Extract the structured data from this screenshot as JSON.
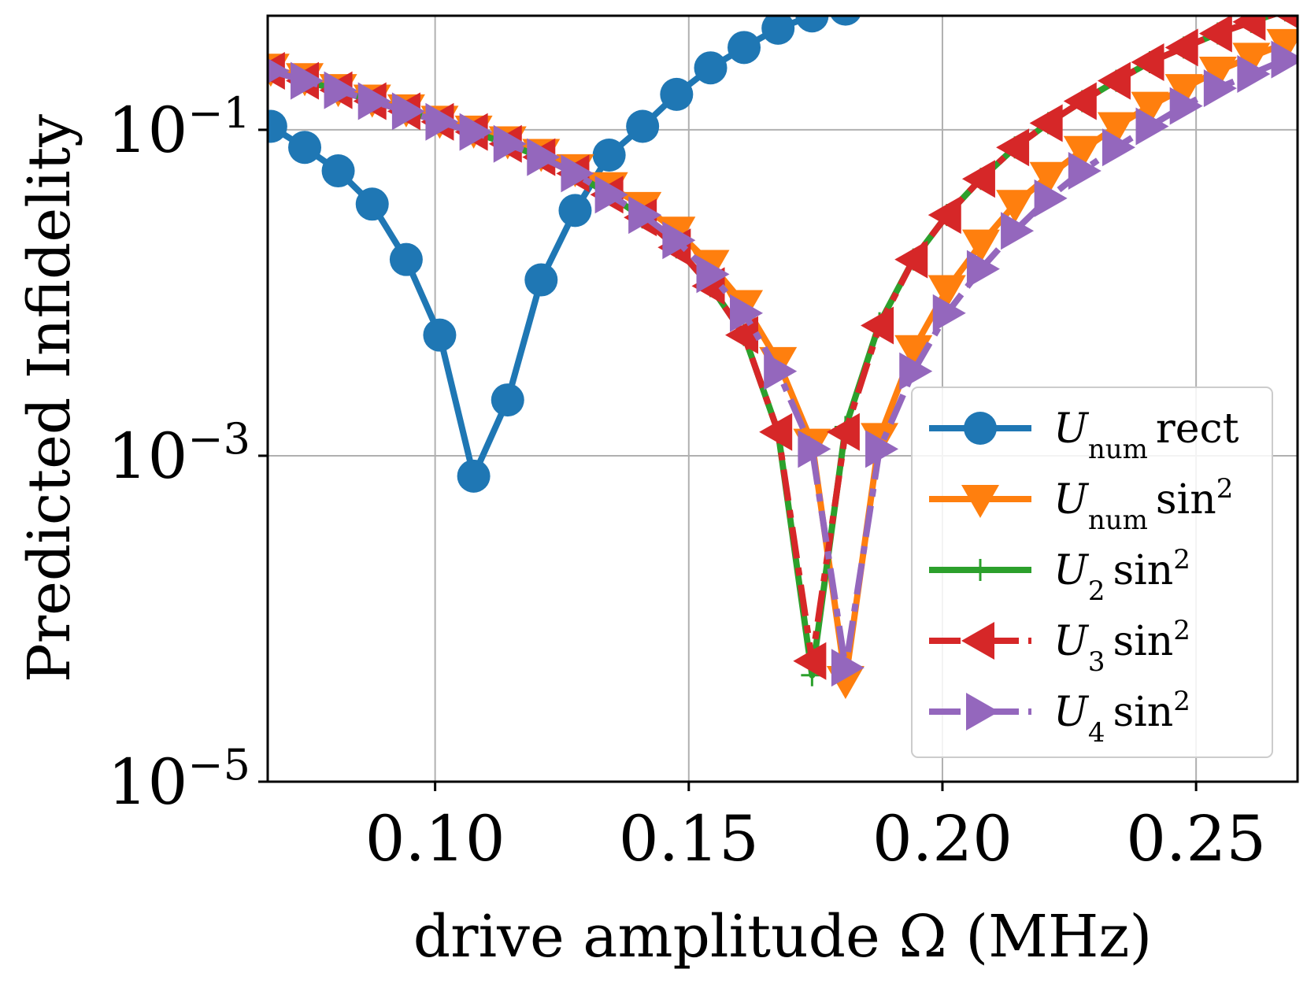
{
  "chart_data": {
    "type": "line",
    "title": "",
    "xlabel": "drive amplitude Ω (MHz)",
    "ylabel": "Predicted Infidelity",
    "xlim": [
      0.067,
      0.27
    ],
    "ylim_log10": [
      -5,
      -0.3
    ],
    "yscale": "log",
    "grid": true,
    "legend_position": "lower-right",
    "xticks": [
      0.1,
      0.15,
      0.2,
      0.25
    ],
    "xtick_labels": [
      "0.10",
      "0.15",
      "0.20",
      "0.25"
    ],
    "yticks": [
      0.1,
      0.001,
      1e-05
    ],
    "ytick_labels": [
      {
        "base": "10",
        "exp": "−1"
      },
      {
        "base": "10",
        "exp": "−3"
      },
      {
        "base": "10",
        "exp": "−5"
      }
    ],
    "series": [
      {
        "name": "U_num rect",
        "legend": {
          "main": "U",
          "sub": "num",
          "rest": "rect",
          "sup": ""
        },
        "color": "#1f77b4",
        "marker": "circle",
        "dash": "solid",
        "x": [
          0.0676,
          0.0743,
          0.0809,
          0.0876,
          0.0943,
          0.1009,
          0.1076,
          0.1143,
          0.1209,
          0.1276,
          0.1343,
          0.1409,
          0.1476,
          0.1543,
          0.1609,
          0.1676,
          0.1743,
          0.1809
        ],
        "y": [
          0.105,
          0.078,
          0.056,
          0.035,
          0.016,
          0.0055,
          0.00075,
          0.0022,
          0.012,
          0.032,
          0.07,
          0.105,
          0.165,
          0.24,
          0.32,
          0.42,
          0.5,
          0.55
        ]
      },
      {
        "name": "U_num sin²",
        "legend": {
          "main": "U",
          "sub": "num",
          "rest": "sin",
          "sup": "2"
        },
        "color": "#ff7f0e",
        "marker": "triangle-down",
        "dash": "solid",
        "x": [
          0.0676,
          0.0743,
          0.0809,
          0.0876,
          0.0943,
          0.1009,
          0.1076,
          0.1143,
          0.1209,
          0.1276,
          0.1343,
          0.1409,
          0.1476,
          0.1543,
          0.1609,
          0.1676,
          0.1743,
          0.1809,
          0.1876,
          0.1943,
          0.2009,
          0.2076,
          0.2143,
          0.2209,
          0.2276,
          0.2343,
          0.2409,
          0.2476,
          0.2543,
          0.2609,
          0.2676
        ],
        "y": [
          0.24,
          0.21,
          0.18,
          0.155,
          0.135,
          0.115,
          0.1,
          0.086,
          0.072,
          0.058,
          0.045,
          0.034,
          0.024,
          0.015,
          0.0085,
          0.0038,
          0.0012,
          4.2e-05,
          0.0013,
          0.0045,
          0.0105,
          0.02,
          0.035,
          0.052,
          0.075,
          0.105,
          0.14,
          0.18,
          0.23,
          0.28,
          0.34
        ]
      },
      {
        "name": "U_2 sin²",
        "legend": {
          "main": "U",
          "sub": "2",
          "rest": "sin",
          "sup": "2"
        },
        "color": "#2ca02c",
        "marker": "plus",
        "dash": "solid",
        "x": [
          0.0676,
          0.0743,
          0.0809,
          0.0876,
          0.0943,
          0.1009,
          0.1076,
          0.1143,
          0.1209,
          0.1276,
          0.1343,
          0.1409,
          0.1476,
          0.1543,
          0.1609,
          0.1676,
          0.1743,
          0.1809,
          0.1876,
          0.1943,
          0.2009,
          0.2076,
          0.2143,
          0.2209,
          0.2276,
          0.2343,
          0.2409,
          0.2476,
          0.2543,
          0.2609,
          0.2676
        ],
        "y": [
          0.23,
          0.2,
          0.175,
          0.15,
          0.13,
          0.112,
          0.097,
          0.082,
          0.068,
          0.054,
          0.04,
          0.029,
          0.019,
          0.011,
          0.0055,
          0.0014,
          4.5e-05,
          0.0015,
          0.0065,
          0.016,
          0.03,
          0.05,
          0.078,
          0.11,
          0.15,
          0.2,
          0.26,
          0.32,
          0.39,
          0.46,
          0.54
        ]
      },
      {
        "name": "U_3 sin²",
        "legend": {
          "main": "U",
          "sub": "3",
          "rest": "sin",
          "sup": "2"
        },
        "color": "#d62728",
        "marker": "triangle-left",
        "dash": "dashdot",
        "x": [
          0.0676,
          0.0743,
          0.0809,
          0.0876,
          0.0943,
          0.1009,
          0.1076,
          0.1143,
          0.1209,
          0.1276,
          0.1343,
          0.1409,
          0.1476,
          0.1543,
          0.1609,
          0.1676,
          0.1743,
          0.1809,
          0.1876,
          0.1943,
          0.2009,
          0.2076,
          0.2143,
          0.2209,
          0.2276,
          0.2343,
          0.2409,
          0.2476,
          0.2543,
          0.2609,
          0.2676
        ],
        "y": [
          0.23,
          0.2,
          0.175,
          0.15,
          0.13,
          0.112,
          0.097,
          0.082,
          0.068,
          0.054,
          0.04,
          0.029,
          0.019,
          0.011,
          0.0055,
          0.0014,
          5.5e-05,
          0.0014,
          0.0063,
          0.016,
          0.03,
          0.05,
          0.078,
          0.11,
          0.15,
          0.2,
          0.26,
          0.32,
          0.39,
          0.46,
          0.54
        ]
      },
      {
        "name": "U_4 sin²",
        "legend": {
          "main": "U",
          "sub": "4",
          "rest": "sin",
          "sup": "2"
        },
        "color": "#9467bd",
        "marker": "triangle-right",
        "dash": "dashdot",
        "x": [
          0.0676,
          0.0743,
          0.0809,
          0.0876,
          0.0943,
          0.1009,
          0.1076,
          0.1143,
          0.1209,
          0.1276,
          0.1343,
          0.1409,
          0.1476,
          0.1543,
          0.1609,
          0.1676,
          0.1743,
          0.1809,
          0.1876,
          0.1943,
          0.2009,
          0.2076,
          0.2143,
          0.2209,
          0.2276,
          0.2343,
          0.2409,
          0.2476,
          0.2543,
          0.2609,
          0.2676
        ],
        "y": [
          0.23,
          0.2,
          0.175,
          0.15,
          0.13,
          0.112,
          0.097,
          0.082,
          0.068,
          0.054,
          0.04,
          0.03,
          0.021,
          0.013,
          0.0075,
          0.0033,
          0.0011,
          5e-05,
          0.0011,
          0.0033,
          0.0075,
          0.014,
          0.024,
          0.038,
          0.056,
          0.078,
          0.105,
          0.14,
          0.18,
          0.22,
          0.27
        ]
      }
    ]
  }
}
